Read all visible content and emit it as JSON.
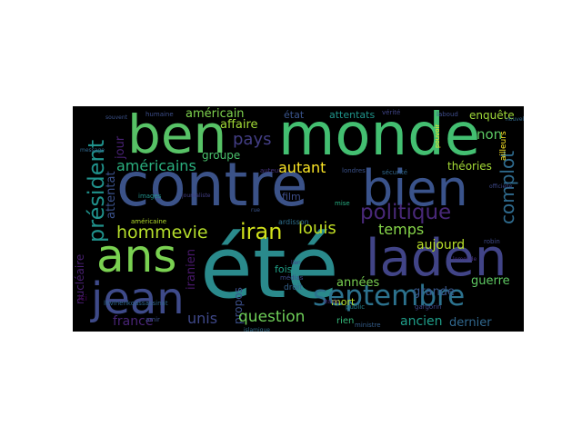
{
  "words": [
    {
      "text": "été",
      "color": "#2a8a8c"
    },
    {
      "text": "contre",
      "color": "#3b5288"
    },
    {
      "text": "ben",
      "color": "#57c266"
    },
    {
      "text": "monde",
      "color": "#43bf71"
    },
    {
      "text": "bien",
      "color": "#3a538b"
    },
    {
      "text": "ans",
      "color": "#7ad151"
    },
    {
      "text": "laden",
      "color": "#414487"
    },
    {
      "text": "jean",
      "color": "#3e4a89"
    },
    {
      "text": "septembre",
      "color": "#2c728e"
    },
    {
      "text": "politique",
      "color": "#482878"
    },
    {
      "text": "président",
      "color": "#20928c"
    },
    {
      "text": "complot",
      "color": "#2f6b8e"
    },
    {
      "text": "iran",
      "color": "#d2e21b"
    },
    {
      "text": "hommevie",
      "color": "#b5de2b"
    },
    {
      "text": "américains",
      "color": "#2ab07f"
    },
    {
      "text": "autant",
      "color": "#fde725"
    },
    {
      "text": "louis",
      "color": "#c2df23"
    },
    {
      "text": "temps",
      "color": "#86d549"
    },
    {
      "text": "pays",
      "color": "#433e85"
    },
    {
      "text": "non",
      "color": "#5cc863"
    },
    {
      "text": "question",
      "color": "#6ece58"
    },
    {
      "text": "années",
      "color": "#7ad151"
    },
    {
      "text": "ancien",
      "color": "#1f9e89"
    },
    {
      "text": "dernier",
      "color": "#31688e"
    },
    {
      "text": "unis",
      "color": "#3f4889"
    },
    {
      "text": "france",
      "color": "#482475"
    },
    {
      "text": "aujourd",
      "color": "#b8de29"
    },
    {
      "text": "grande",
      "color": "#38588c"
    },
    {
      "text": "guerre",
      "color": "#5ec962"
    },
    {
      "text": "enquête",
      "color": "#a0da39"
    },
    {
      "text": "américain",
      "color": "#7fd34e"
    },
    {
      "text": "affaire",
      "color": "#a2da37"
    },
    {
      "text": "état",
      "color": "#3a548c"
    },
    {
      "text": "attentats",
      "color": "#1f958b"
    },
    {
      "text": "théories",
      "color": "#a5db36"
    },
    {
      "text": "attentat",
      "color": "#3b528b"
    },
    {
      "text": "jour",
      "color": "#482173"
    },
    {
      "text": "groupe",
      "color": "#4ac16d"
    },
    {
      "text": "film",
      "color": "#3d4d8a"
    },
    {
      "text": "fois",
      "color": "#1fa188"
    },
    {
      "text": "mort",
      "color": "#b8de29"
    },
    {
      "text": "nucléaire",
      "color": "#481f70"
    },
    {
      "text": "iranien",
      "color": "#48186a"
    },
    {
      "text": "propos",
      "color": "#3c508b"
    },
    {
      "text": "droit",
      "color": "#34618d"
    },
    {
      "text": "rien",
      "color": "#35b779"
    },
    {
      "text": "ici",
      "color": "#440154"
    },
    {
      "text": "humaine",
      "color": "#3d4e8a"
    },
    {
      "text": "vérité",
      "color": "#404588"
    },
    {
      "text": "laboud",
      "color": "#3e4c8a"
    },
    {
      "text": "images",
      "color": "#21918c"
    },
    {
      "text": "américaine",
      "color": "#b5de2b"
    },
    {
      "text": "ardisson",
      "color": "#2e6f8e"
    },
    {
      "text": "mise",
      "color": "#27ad81"
    },
    {
      "text": "londres",
      "color": "#3b528b"
    },
    {
      "text": "sécurité",
      "color": "#31688e"
    },
    {
      "text": "pouvoir",
      "color": "#fde725"
    },
    {
      "text": "eads",
      "color": "#482878"
    },
    {
      "text": "public",
      "color": "#26828e"
    },
    {
      "text": "ministre",
      "color": "#355f8d"
    },
    {
      "text": "ailleurs",
      "color": "#fde725"
    },
    {
      "text": "litvinenkoassassinat",
      "color": "#31688e"
    },
    {
      "text": "amir",
      "color": "#3b528b"
    },
    {
      "text": "médias",
      "color": "#3e4a89"
    },
    {
      "text": "auteur",
      "color": "#46337e"
    },
    {
      "text": "gargorin",
      "color": "#3f4788"
    },
    {
      "text": "robin",
      "color": "#3e4989"
    },
    {
      "text": "nouvelle",
      "color": "#31688e"
    },
    {
      "text": "souvent",
      "color": "#3b528b"
    },
    {
      "text": "journaliste",
      "color": "#433e85"
    },
    {
      "text": "lien",
      "color": "#424086"
    },
    {
      "text": "rue",
      "color": "#3a548c"
    },
    {
      "text": "message",
      "color": "#31688e"
    },
    {
      "text": "officielle",
      "color": "#3e4989"
    },
    {
      "text": "islamique",
      "color": "#2f6c8e"
    },
    {
      "text": "lemonde",
      "color": "#46327e"
    }
  ]
}
